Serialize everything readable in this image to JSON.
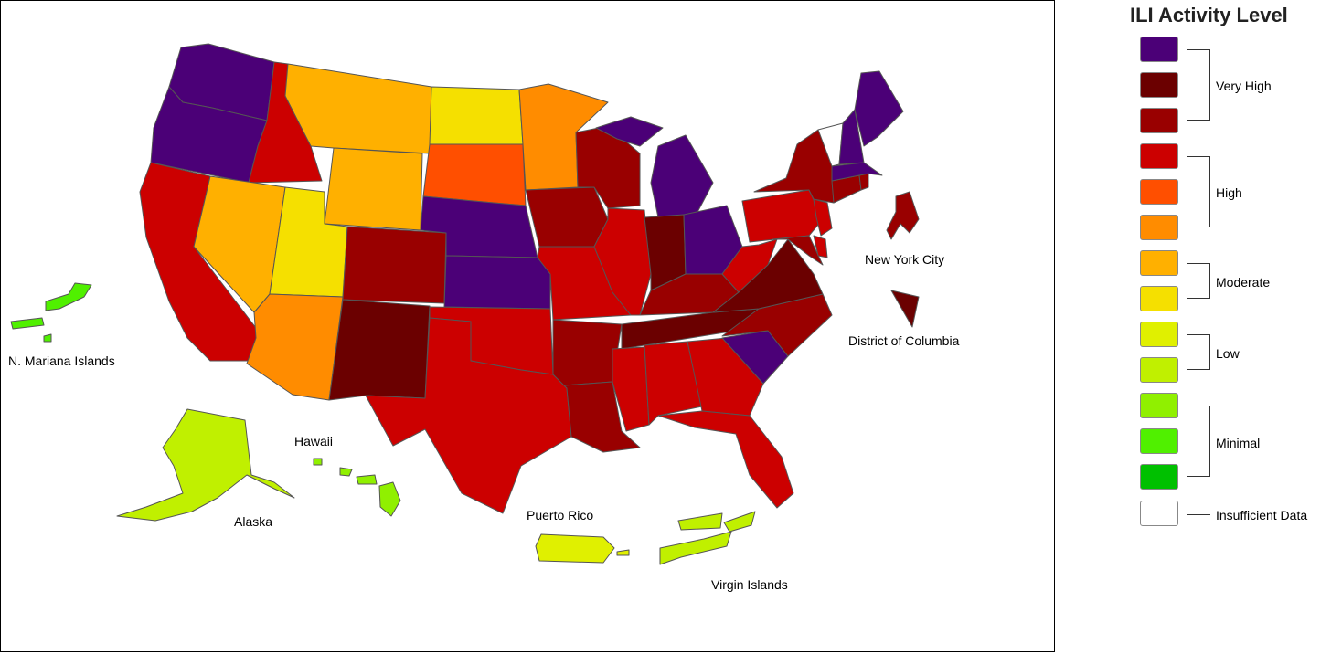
{
  "legend": {
    "title": "ILI Activity Level",
    "levels": [
      {
        "color": "#4B0077"
      },
      {
        "color": "#6B0000"
      },
      {
        "color": "#990000"
      },
      {
        "color": "#CC0000"
      },
      {
        "color": "#FF4F00"
      },
      {
        "color": "#FF8C00"
      },
      {
        "color": "#FFB000"
      },
      {
        "color": "#F5E000"
      },
      {
        "color": "#E0F000"
      },
      {
        "color": "#C0F000"
      },
      {
        "color": "#90F000"
      },
      {
        "color": "#50F000"
      },
      {
        "color": "#00C000"
      },
      {
        "color": "#FFFFFF"
      }
    ],
    "groups": {
      "very_high": "Very High",
      "high": "High",
      "moderate": "Moderate",
      "low": "Low",
      "minimal": "Minimal",
      "insufficient": "Insufficient Data"
    }
  },
  "labels": {
    "new_york_city": "New York City",
    "district_of_columbia": "District of Columbia",
    "n_mariana_islands": "N. Mariana Islands",
    "hawaii": "Hawaii",
    "alaska": "Alaska",
    "puerto_rico": "Puerto Rico",
    "virgin_islands": "Virgin Islands"
  }
}
